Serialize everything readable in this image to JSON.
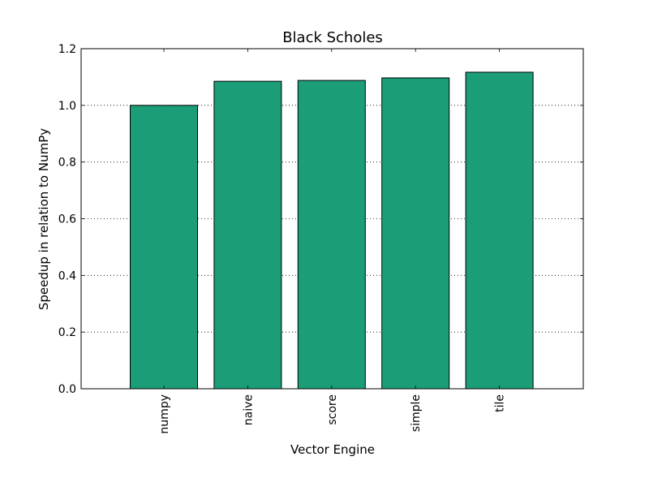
{
  "chart_data": {
    "type": "bar",
    "title": "Black Scholes",
    "xlabel": "Vector Engine",
    "ylabel": "Speedup in relation to NumPy",
    "categories": [
      "numpy",
      "naive",
      "score",
      "simple",
      "tile"
    ],
    "values": [
      1.0,
      1.085,
      1.088,
      1.097,
      1.117
    ],
    "ylim": [
      0,
      1.2
    ],
    "yticks": [
      "0.0",
      "0.2",
      "0.4",
      "0.6",
      "0.8",
      "1.0",
      "1.2"
    ],
    "grid": "horizontal dotted",
    "colors": {
      "bar": "#1b9e77",
      "edge": "#000000"
    }
  }
}
